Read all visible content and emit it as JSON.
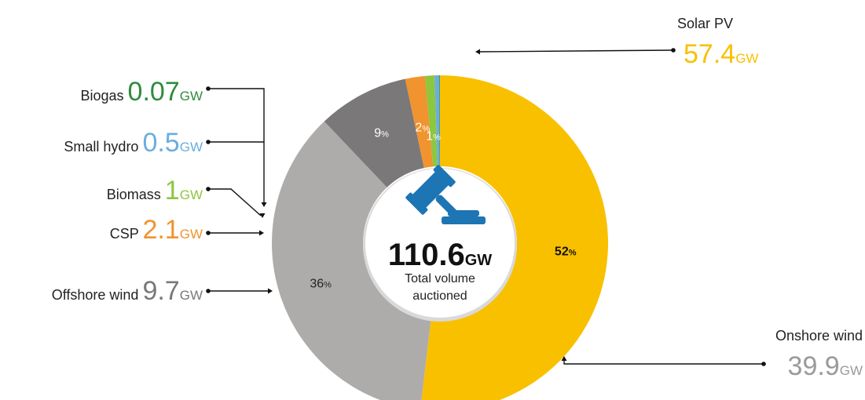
{
  "chart_data": {
    "type": "pie",
    "style": "donut",
    "unit": "GW",
    "center": {
      "value": "110.6",
      "unit": "GW",
      "caption_line1": "Total volume",
      "caption_line2": "auctioned",
      "icon": "gavel-icon"
    },
    "slices": [
      {
        "name": "Solar PV",
        "value": 57.4,
        "value_label": "57.4",
        "percent": 52,
        "percent_label": "52",
        "color": "#F9C000",
        "label_color": "#F9C000",
        "pct_color": "#111111"
      },
      {
        "name": "Onshore wind",
        "value": 39.9,
        "value_label": "39.9",
        "percent": 36,
        "percent_label": "36",
        "color": "#AEABAB",
        "label_color": "#9B9999",
        "pct_color": "#222222"
      },
      {
        "name": "Offshore wind",
        "value": 9.7,
        "value_label": "9.7",
        "percent": 9,
        "percent_label": "9",
        "color": "#7A7878",
        "label_color": "#7A7878",
        "pct_color": "#ffffff"
      },
      {
        "name": "CSP",
        "value": 2.1,
        "value_label": "2.1",
        "percent": 2,
        "percent_label": "2",
        "color": "#F1932E",
        "label_color": "#F1932E",
        "pct_color": "#ffffff"
      },
      {
        "name": "Biomass",
        "value": 1,
        "value_label": "1",
        "percent": 1,
        "percent_label": "1",
        "color": "#8DC63F",
        "label_color": "#8DC63F",
        "pct_color": "#ffffff"
      },
      {
        "name": "Small hydro",
        "value": 0.5,
        "value_label": "0.5",
        "percent": null,
        "percent_label": "",
        "color": "#6AAEDF",
        "label_color": "#6AAEDF",
        "pct_color": "#ffffff"
      },
      {
        "name": "Biogas",
        "value": 0.07,
        "value_label": "0.07",
        "percent": null,
        "percent_label": "",
        "color": "#2E8B3E",
        "label_color": "#2E8B3E",
        "pct_color": "#ffffff"
      }
    ],
    "percent_sign": "%",
    "unit_suffix": "GW"
  }
}
